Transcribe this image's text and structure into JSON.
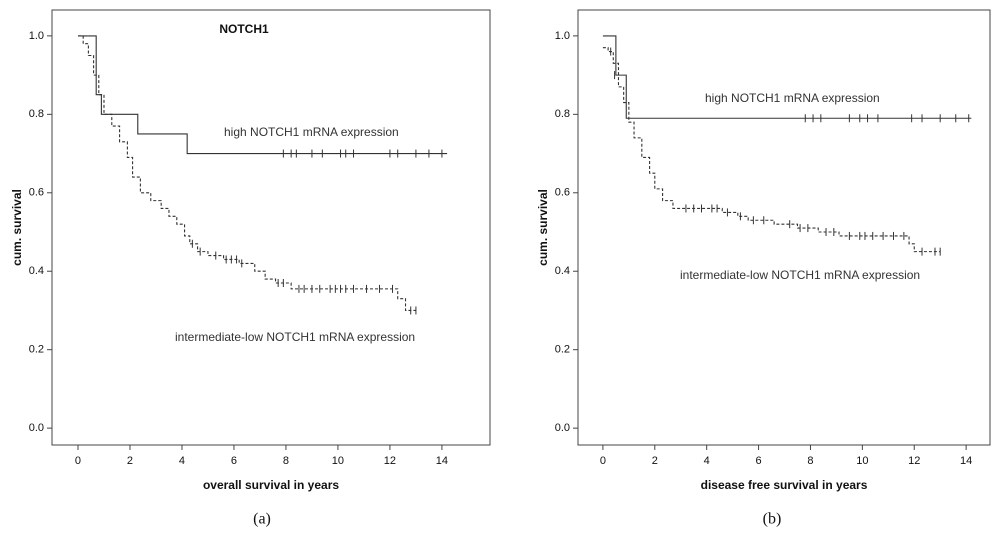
{
  "chart_data": [
    {
      "type": "line",
      "step": true,
      "title": "NOTCH1",
      "xlabel": "overall survival in years",
      "ylabel": "cum. survival",
      "caption": "(a)",
      "xlim": [
        -1,
        15.85
      ],
      "ylim": [
        -0.043,
        1.066
      ],
      "xticks": [
        0,
        2,
        4,
        6,
        8,
        10,
        12,
        14
      ],
      "yticks": [
        {
          "value": 0,
          "label": "0.0"
        },
        0.2,
        0.4,
        0.6,
        0.8,
        {
          "value": 1,
          "label": "1.0"
        }
      ],
      "series": [
        {
          "name": "high NOTCH1 mRNA expression",
          "color": "#333333",
          "style": "solid",
          "x": [
            0,
            0.7,
            0.9,
            2.3,
            4.2,
            14.2
          ],
          "values": [
            1.0,
            0.85,
            0.8,
            0.75,
            0.7,
            0.7
          ],
          "censored": {
            "x": [
              7.9,
              8.2,
              8.4,
              9.0,
              9.4,
              10.1,
              10.3,
              10.6,
              12.0,
              12.3,
              13.0,
              13.5,
              14.0
            ],
            "values": [
              0.7,
              0.7,
              0.7,
              0.7,
              0.7,
              0.7,
              0.7,
              0.7,
              0.7,
              0.7,
              0.7,
              0.7,
              0.7
            ]
          }
        },
        {
          "name": "intermediate-low NOTCH1 mRNA expression",
          "color": "#333333",
          "style": "dashed",
          "x": [
            0,
            0.2,
            0.4,
            0.6,
            0.8,
            1.0,
            1.3,
            1.6,
            1.9,
            2.1,
            2.4,
            2.8,
            3.2,
            3.5,
            3.8,
            4.1,
            4.3,
            4.6,
            5.0,
            5.6,
            6.2,
            6.8,
            7.2,
            7.6,
            8.2,
            12.3,
            12.6,
            13.0
          ],
          "values": [
            1.0,
            0.98,
            0.95,
            0.9,
            0.85,
            0.8,
            0.77,
            0.73,
            0.69,
            0.64,
            0.6,
            0.58,
            0.56,
            0.54,
            0.52,
            0.49,
            0.47,
            0.45,
            0.44,
            0.43,
            0.42,
            0.4,
            0.38,
            0.37,
            0.355,
            0.33,
            0.3,
            0.3
          ],
          "censored": {
            "x": [
              4.4,
              4.7,
              5.3,
              5.7,
              5.9,
              6.1,
              6.3,
              7.7,
              7.9,
              8.5,
              8.7,
              9.0,
              9.3,
              9.7,
              9.9,
              10.1,
              10.3,
              10.6,
              11.1,
              11.6,
              12.1,
              12.8,
              13.0
            ],
            "values": [
              0.47,
              0.45,
              0.44,
              0.43,
              0.43,
              0.43,
              0.42,
              0.37,
              0.37,
              0.355,
              0.355,
              0.355,
              0.355,
              0.355,
              0.355,
              0.355,
              0.355,
              0.355,
              0.355,
              0.355,
              0.355,
              0.3,
              0.3
            ]
          }
        }
      ]
    },
    {
      "type": "line",
      "step": true,
      "xlabel": "disease free survival in years",
      "ylabel": "cum. survival",
      "caption": "(b)",
      "xlim": [
        -0.96,
        14.92
      ],
      "ylim": [
        -0.043,
        1.066
      ],
      "xticks": [
        0,
        2,
        4,
        6,
        8,
        10,
        12,
        14
      ],
      "yticks": [
        {
          "value": 0,
          "label": "0.0"
        },
        0.2,
        0.4,
        0.6,
        0.8,
        {
          "value": 1,
          "label": "1.0"
        }
      ],
      "series": [
        {
          "name": "high NOTCH1 mRNA expression",
          "color": "#333333",
          "style": "solid",
          "x": [
            0,
            0.5,
            0.9,
            14.2
          ],
          "values": [
            1.0,
            0.9,
            0.79,
            0.79
          ],
          "censored": {
            "x": [
              0.45,
              7.8,
              8.1,
              8.4,
              9.5,
              9.9,
              10.2,
              10.6,
              11.9,
              12.3,
              13.0,
              13.6,
              14.1
            ],
            "values": [
              0.9,
              0.79,
              0.79,
              0.79,
              0.79,
              0.79,
              0.79,
              0.79,
              0.79,
              0.79,
              0.79,
              0.79,
              0.79
            ]
          }
        },
        {
          "name": "intermediate-low NOTCH1 mRNA expression",
          "color": "#333333",
          "style": "dashed",
          "x": [
            0,
            0.2,
            0.4,
            0.6,
            0.8,
            1.0,
            1.2,
            1.5,
            1.8,
            2.0,
            2.3,
            2.7,
            4.6,
            5.2,
            5.6,
            6.6,
            7.5,
            8.3,
            9.1,
            11.8,
            12.0,
            13.0
          ],
          "values": [
            0.97,
            0.96,
            0.93,
            0.87,
            0.83,
            0.78,
            0.74,
            0.69,
            0.65,
            0.61,
            0.58,
            0.56,
            0.55,
            0.54,
            0.53,
            0.52,
            0.51,
            0.5,
            0.49,
            0.47,
            0.45,
            0.45
          ],
          "censored": {
            "x": [
              0.3,
              3.2,
              3.5,
              3.8,
              4.2,
              4.4,
              4.8,
              5.3,
              5.8,
              6.2,
              7.2,
              7.6,
              7.9,
              8.6,
              8.9,
              9.5,
              9.9,
              10.1,
              10.4,
              10.8,
              11.2,
              11.6,
              12.3,
              12.8,
              13.0
            ],
            "values": [
              0.96,
              0.56,
              0.56,
              0.56,
              0.56,
              0.56,
              0.55,
              0.54,
              0.53,
              0.53,
              0.52,
              0.51,
              0.51,
              0.5,
              0.5,
              0.49,
              0.49,
              0.49,
              0.49,
              0.49,
              0.49,
              0.49,
              0.45,
              0.45,
              0.45
            ]
          }
        }
      ]
    }
  ]
}
